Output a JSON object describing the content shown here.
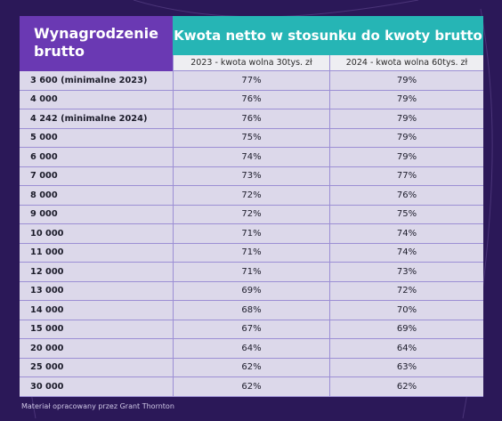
{
  "colors": {
    "background": "#2b1858",
    "header_left": "#6a39b3",
    "header_main": "#26b5b5",
    "table_body": "#dcd8ea",
    "grid_lines": "#9c8fd4"
  },
  "table": {
    "header_left": "Wynagrodzenie brutto",
    "header_main": "Kwota netto w stosunku do kwoty brutto",
    "sub_headers": [
      "2023 - kwota wolna 30tys. zł",
      "2024 - kwota wolna 60tys. zł"
    ],
    "rows": [
      {
        "label": "3 600 (minimalne 2023)",
        "v2023": "77%",
        "v2024": "79%"
      },
      {
        "label": "4 000",
        "v2023": "76%",
        "v2024": "79%"
      },
      {
        "label": "4 242 (minimalne 2024)",
        "v2023": "76%",
        "v2024": "79%"
      },
      {
        "label": "5 000",
        "v2023": "75%",
        "v2024": "79%"
      },
      {
        "label": "6 000",
        "v2023": "74%",
        "v2024": "79%"
      },
      {
        "label": "7 000",
        "v2023": "73%",
        "v2024": "77%"
      },
      {
        "label": "8 000",
        "v2023": "72%",
        "v2024": "76%"
      },
      {
        "label": "9 000",
        "v2023": "72%",
        "v2024": "75%"
      },
      {
        "label": "10 000",
        "v2023": "71%",
        "v2024": "74%"
      },
      {
        "label": "11 000",
        "v2023": "71%",
        "v2024": "74%"
      },
      {
        "label": "12 000",
        "v2023": "71%",
        "v2024": "73%"
      },
      {
        "label": "13 000",
        "v2023": "69%",
        "v2024": "72%"
      },
      {
        "label": "14 000",
        "v2023": "68%",
        "v2024": "70%"
      },
      {
        "label": "15 000",
        "v2023": "67%",
        "v2024": "69%"
      },
      {
        "label": "20 000",
        "v2023": "64%",
        "v2024": "64%"
      },
      {
        "label": "25 000",
        "v2023": "62%",
        "v2024": "63%"
      },
      {
        "label": "30 000",
        "v2023": "62%",
        "v2024": "62%"
      }
    ]
  },
  "footer": "Materiał opracowany przez Grant Thornton"
}
